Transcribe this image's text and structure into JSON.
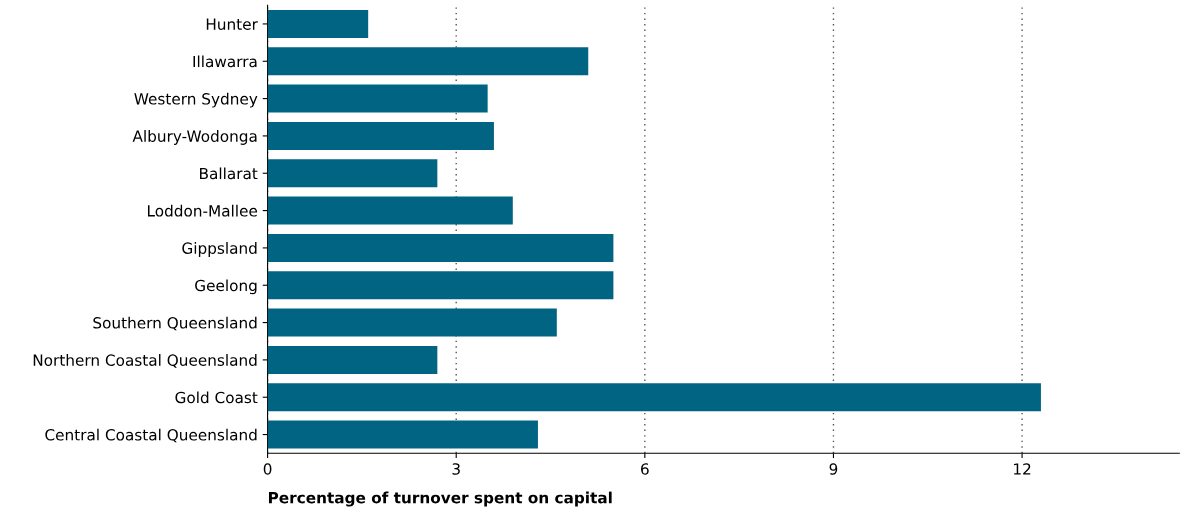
{
  "chart_data": {
    "type": "bar",
    "orientation": "horizontal",
    "categories": [
      "Hunter",
      "Illawarra",
      "Western Sydney",
      "Albury-Wodonga",
      "Ballarat",
      "Loddon-Mallee",
      "Gippsland",
      "Geelong",
      "Southern Queensland",
      "Northern Coastal Queensland",
      "Gold Coast",
      "Central Coastal Queensland"
    ],
    "values": [
      1.6,
      5.1,
      3.5,
      3.6,
      2.7,
      3.9,
      5.5,
      5.5,
      4.6,
      2.7,
      12.3,
      4.3
    ],
    "color": "#006482",
    "xlim": [
      0,
      14.5
    ],
    "xticks": [
      0,
      3,
      6,
      9,
      12
    ],
    "xlabel": "Percentage of turnover spent on capital",
    "grid": "x"
  }
}
